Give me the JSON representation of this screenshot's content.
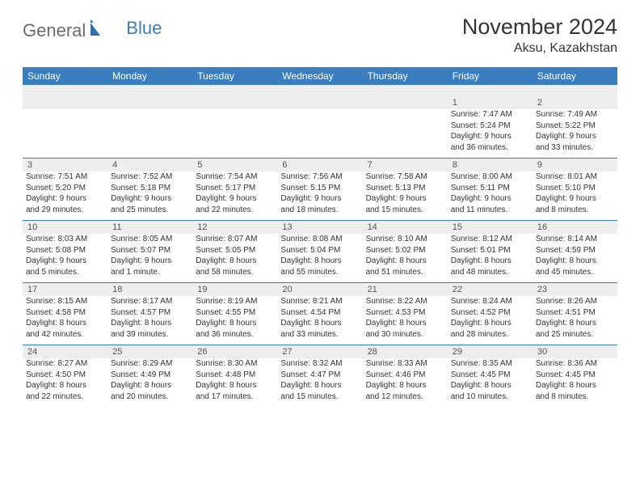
{
  "logo": {
    "gen": "General",
    "blue": "Blue"
  },
  "title": "November 2024",
  "subtitle": "Aksu, Kazakhstan",
  "header_bg": "#3a7ebf",
  "header_fg": "#ffffff",
  "daybar_bg": "#eeeeee",
  "days": [
    "Sunday",
    "Monday",
    "Tuesday",
    "Wednesday",
    "Thursday",
    "Friday",
    "Saturday"
  ],
  "weeks": [
    [
      null,
      null,
      null,
      null,
      null,
      {
        "n": "1",
        "sr": "Sunrise: 7:47 AM",
        "ss": "Sunset: 5:24 PM",
        "dl1": "Daylight: 9 hours",
        "dl2": "and 36 minutes."
      },
      {
        "n": "2",
        "sr": "Sunrise: 7:49 AM",
        "ss": "Sunset: 5:22 PM",
        "dl1": "Daylight: 9 hours",
        "dl2": "and 33 minutes."
      }
    ],
    [
      {
        "n": "3",
        "sr": "Sunrise: 7:51 AM",
        "ss": "Sunset: 5:20 PM",
        "dl1": "Daylight: 9 hours",
        "dl2": "and 29 minutes."
      },
      {
        "n": "4",
        "sr": "Sunrise: 7:52 AM",
        "ss": "Sunset: 5:18 PM",
        "dl1": "Daylight: 9 hours",
        "dl2": "and 25 minutes."
      },
      {
        "n": "5",
        "sr": "Sunrise: 7:54 AM",
        "ss": "Sunset: 5:17 PM",
        "dl1": "Daylight: 9 hours",
        "dl2": "and 22 minutes."
      },
      {
        "n": "6",
        "sr": "Sunrise: 7:56 AM",
        "ss": "Sunset: 5:15 PM",
        "dl1": "Daylight: 9 hours",
        "dl2": "and 18 minutes."
      },
      {
        "n": "7",
        "sr": "Sunrise: 7:58 AM",
        "ss": "Sunset: 5:13 PM",
        "dl1": "Daylight: 9 hours",
        "dl2": "and 15 minutes."
      },
      {
        "n": "8",
        "sr": "Sunrise: 8:00 AM",
        "ss": "Sunset: 5:11 PM",
        "dl1": "Daylight: 9 hours",
        "dl2": "and 11 minutes."
      },
      {
        "n": "9",
        "sr": "Sunrise: 8:01 AM",
        "ss": "Sunset: 5:10 PM",
        "dl1": "Daylight: 9 hours",
        "dl2": "and 8 minutes."
      }
    ],
    [
      {
        "n": "10",
        "sr": "Sunrise: 8:03 AM",
        "ss": "Sunset: 5:08 PM",
        "dl1": "Daylight: 9 hours",
        "dl2": "and 5 minutes."
      },
      {
        "n": "11",
        "sr": "Sunrise: 8:05 AM",
        "ss": "Sunset: 5:07 PM",
        "dl1": "Daylight: 9 hours",
        "dl2": "and 1 minute."
      },
      {
        "n": "12",
        "sr": "Sunrise: 8:07 AM",
        "ss": "Sunset: 5:05 PM",
        "dl1": "Daylight: 8 hours",
        "dl2": "and 58 minutes."
      },
      {
        "n": "13",
        "sr": "Sunrise: 8:08 AM",
        "ss": "Sunset: 5:04 PM",
        "dl1": "Daylight: 8 hours",
        "dl2": "and 55 minutes."
      },
      {
        "n": "14",
        "sr": "Sunrise: 8:10 AM",
        "ss": "Sunset: 5:02 PM",
        "dl1": "Daylight: 8 hours",
        "dl2": "and 51 minutes."
      },
      {
        "n": "15",
        "sr": "Sunrise: 8:12 AM",
        "ss": "Sunset: 5:01 PM",
        "dl1": "Daylight: 8 hours",
        "dl2": "and 48 minutes."
      },
      {
        "n": "16",
        "sr": "Sunrise: 8:14 AM",
        "ss": "Sunset: 4:59 PM",
        "dl1": "Daylight: 8 hours",
        "dl2": "and 45 minutes."
      }
    ],
    [
      {
        "n": "17",
        "sr": "Sunrise: 8:15 AM",
        "ss": "Sunset: 4:58 PM",
        "dl1": "Daylight: 8 hours",
        "dl2": "and 42 minutes."
      },
      {
        "n": "18",
        "sr": "Sunrise: 8:17 AM",
        "ss": "Sunset: 4:57 PM",
        "dl1": "Daylight: 8 hours",
        "dl2": "and 39 minutes."
      },
      {
        "n": "19",
        "sr": "Sunrise: 8:19 AM",
        "ss": "Sunset: 4:55 PM",
        "dl1": "Daylight: 8 hours",
        "dl2": "and 36 minutes."
      },
      {
        "n": "20",
        "sr": "Sunrise: 8:21 AM",
        "ss": "Sunset: 4:54 PM",
        "dl1": "Daylight: 8 hours",
        "dl2": "and 33 minutes."
      },
      {
        "n": "21",
        "sr": "Sunrise: 8:22 AM",
        "ss": "Sunset: 4:53 PM",
        "dl1": "Daylight: 8 hours",
        "dl2": "and 30 minutes."
      },
      {
        "n": "22",
        "sr": "Sunrise: 8:24 AM",
        "ss": "Sunset: 4:52 PM",
        "dl1": "Daylight: 8 hours",
        "dl2": "and 28 minutes."
      },
      {
        "n": "23",
        "sr": "Sunrise: 8:26 AM",
        "ss": "Sunset: 4:51 PM",
        "dl1": "Daylight: 8 hours",
        "dl2": "and 25 minutes."
      }
    ],
    [
      {
        "n": "24",
        "sr": "Sunrise: 8:27 AM",
        "ss": "Sunset: 4:50 PM",
        "dl1": "Daylight: 8 hours",
        "dl2": "and 22 minutes."
      },
      {
        "n": "25",
        "sr": "Sunrise: 8:29 AM",
        "ss": "Sunset: 4:49 PM",
        "dl1": "Daylight: 8 hours",
        "dl2": "and 20 minutes."
      },
      {
        "n": "26",
        "sr": "Sunrise: 8:30 AM",
        "ss": "Sunset: 4:48 PM",
        "dl1": "Daylight: 8 hours",
        "dl2": "and 17 minutes."
      },
      {
        "n": "27",
        "sr": "Sunrise: 8:32 AM",
        "ss": "Sunset: 4:47 PM",
        "dl1": "Daylight: 8 hours",
        "dl2": "and 15 minutes."
      },
      {
        "n": "28",
        "sr": "Sunrise: 8:33 AM",
        "ss": "Sunset: 4:46 PM",
        "dl1": "Daylight: 8 hours",
        "dl2": "and 12 minutes."
      },
      {
        "n": "29",
        "sr": "Sunrise: 8:35 AM",
        "ss": "Sunset: 4:45 PM",
        "dl1": "Daylight: 8 hours",
        "dl2": "and 10 minutes."
      },
      {
        "n": "30",
        "sr": "Sunrise: 8:36 AM",
        "ss": "Sunset: 4:45 PM",
        "dl1": "Daylight: 8 hours",
        "dl2": "and 8 minutes."
      }
    ]
  ]
}
